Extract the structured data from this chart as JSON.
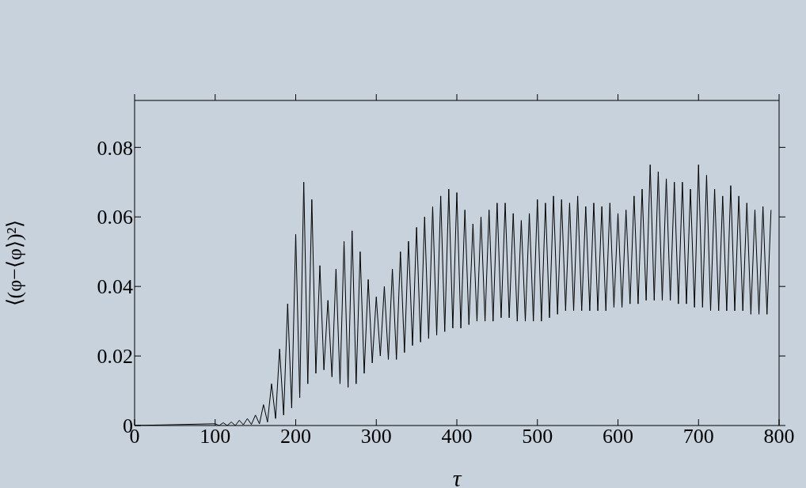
{
  "chart_data": {
    "type": "line",
    "xlabel": "τ",
    "ylabel": "⟨(φ−⟨φ⟩)²⟩",
    "x": [
      0,
      100,
      105,
      110,
      115,
      120,
      125,
      130,
      135,
      140,
      145,
      150,
      155,
      160,
      165,
      170,
      175,
      180,
      185,
      190,
      195,
      200,
      205,
      210,
      215,
      220,
      225,
      230,
      235,
      240,
      245,
      250,
      255,
      260,
      265,
      270,
      275,
      280,
      285,
      290,
      295,
      300,
      305,
      310,
      315,
      320,
      325,
      330,
      335,
      340,
      345,
      350,
      355,
      360,
      365,
      370,
      375,
      380,
      385,
      390,
      395,
      400,
      405,
      410,
      415,
      420,
      425,
      430,
      435,
      440,
      445,
      450,
      455,
      460,
      465,
      470,
      475,
      480,
      485,
      490,
      495,
      500,
      505,
      510,
      515,
      520,
      525,
      530,
      535,
      540,
      545,
      550,
      555,
      560,
      565,
      570,
      575,
      580,
      585,
      590,
      595,
      600,
      605,
      610,
      615,
      620,
      625,
      630,
      635,
      640,
      645,
      650,
      655,
      660,
      665,
      670,
      675,
      680,
      685,
      690,
      695,
      700,
      705,
      710,
      715,
      720,
      725,
      730,
      735,
      740,
      745,
      750,
      755,
      760,
      765,
      770,
      775,
      780,
      785,
      790
    ],
    "series": [
      {
        "color": "#000000",
        "values": [
          0,
          0.0005,
          0,
          0.0008,
          0,
          0.001,
          0,
          0.0015,
          0.0002,
          0.002,
          0.0003,
          0.003,
          0.0005,
          0.006,
          0.001,
          0.012,
          0.002,
          0.022,
          0.003,
          0.035,
          0.005,
          0.055,
          0.008,
          0.07,
          0.012,
          0.065,
          0.015,
          0.046,
          0.016,
          0.036,
          0.014,
          0.045,
          0.012,
          0.053,
          0.011,
          0.056,
          0.012,
          0.05,
          0.015,
          0.042,
          0.018,
          0.037,
          0.02,
          0.04,
          0.019,
          0.045,
          0.019,
          0.05,
          0.021,
          0.053,
          0.023,
          0.057,
          0.024,
          0.06,
          0.025,
          0.063,
          0.026,
          0.066,
          0.027,
          0.068,
          0.028,
          0.067,
          0.028,
          0.062,
          0.029,
          0.058,
          0.03,
          0.06,
          0.03,
          0.062,
          0.03,
          0.064,
          0.031,
          0.064,
          0.031,
          0.061,
          0.03,
          0.059,
          0.03,
          0.061,
          0.03,
          0.065,
          0.03,
          0.064,
          0.031,
          0.066,
          0.032,
          0.065,
          0.033,
          0.064,
          0.033,
          0.066,
          0.033,
          0.063,
          0.033,
          0.064,
          0.033,
          0.063,
          0.033,
          0.064,
          0.034,
          0.061,
          0.034,
          0.062,
          0.035,
          0.066,
          0.035,
          0.068,
          0.036,
          0.075,
          0.036,
          0.073,
          0.036,
          0.071,
          0.036,
          0.07,
          0.035,
          0.07,
          0.035,
          0.068,
          0.034,
          0.075,
          0.034,
          0.072,
          0.033,
          0.068,
          0.033,
          0.066,
          0.033,
          0.069,
          0.033,
          0.066,
          0.033,
          0.064,
          0.032,
          0.062,
          0.032,
          0.063,
          0.032,
          0.062
        ]
      }
    ],
    "xlim": [
      0,
      800
    ],
    "ylim": [
      0,
      0.0935
    ],
    "xticks": [
      0,
      100,
      200,
      300,
      400,
      500,
      600,
      700,
      800
    ],
    "yticks": [
      0,
      0.02,
      0.04,
      0.06,
      0.08
    ],
    "grid": false,
    "marker": "none",
    "line_style": "solid"
  }
}
